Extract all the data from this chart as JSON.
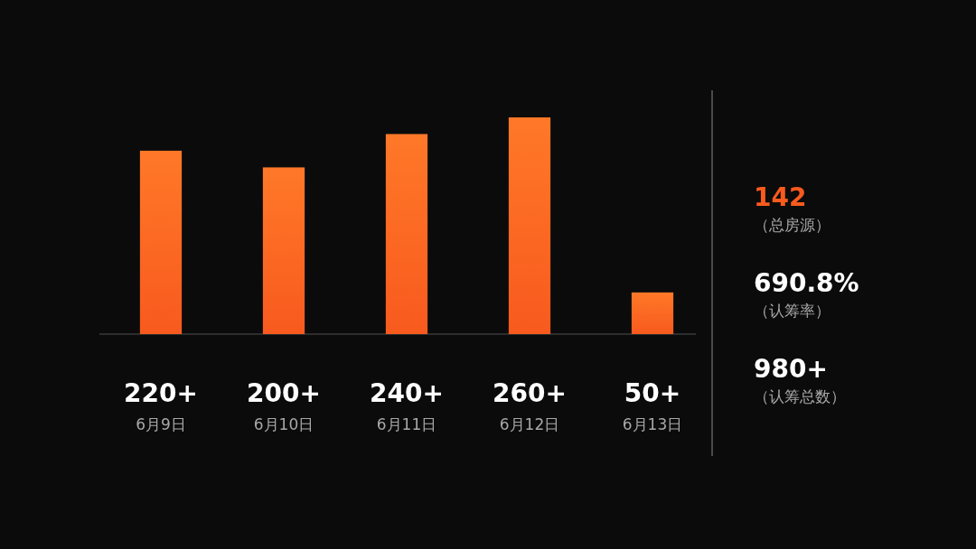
{
  "chart_data": {
    "type": "bar",
    "categories": [
      "6月9日",
      "6月10日",
      "6月11日",
      "6月12日",
      "6月13日"
    ],
    "values": [
      220,
      200,
      240,
      260,
      50
    ],
    "value_labels": [
      "220+",
      "200+",
      "240+",
      "260+",
      "50+"
    ],
    "color": "#f85a1e",
    "annotations": [
      "142",
      "（总房源）",
      "690.8%",
      "（认筹率）",
      "980+",
      "（认筹总数）"
    ]
  }
}
